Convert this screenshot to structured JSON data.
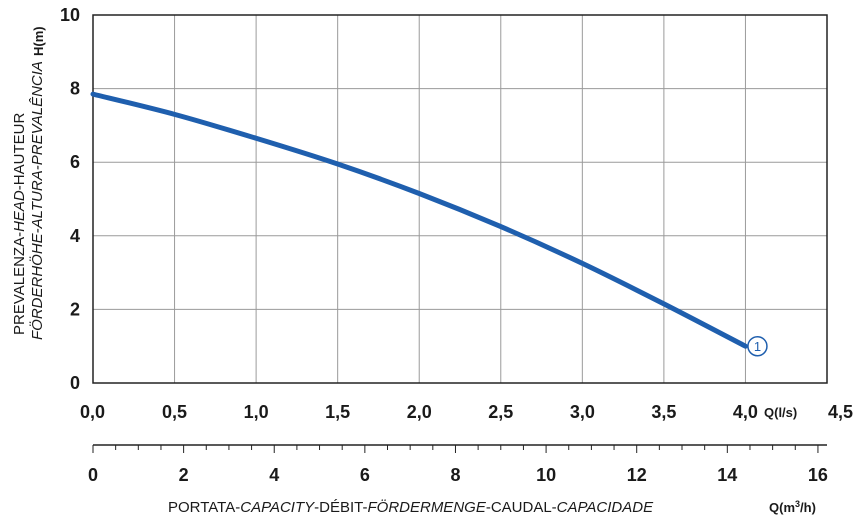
{
  "chart_data": {
    "type": "line",
    "ylabel_line1": [
      "PREVALENZA-",
      "HEAD",
      "-HAUTEUR"
    ],
    "ylabel_line2": "FÖRDERHÖHE-ALTURA-PREVALÊNCIA",
    "yunit": "H(m)",
    "xlabel_parts": [
      "PORTATA-",
      "CAPACITY",
      "-DÉBIT-",
      "FÖRDERMENGE",
      "-CAUDAL-",
      "CAPACIDADE"
    ],
    "x1unit": "Q(l/s)",
    "x2unit_prefix": "Q(m",
    "x2unit_sup": "3",
    "x2unit_suffix": "/h)",
    "ylim": [
      0,
      10
    ],
    "xlim": [
      0,
      4.5
    ],
    "x2lim": [
      0,
      16.2
    ],
    "yticks": [
      "0",
      "2",
      "4",
      "6",
      "8",
      "10"
    ],
    "x1ticks": [
      "0,0",
      "0,5",
      "1,0",
      "1,5",
      "2,0",
      "2,5",
      "3,0",
      "3,5",
      "4,0",
      "4,5"
    ],
    "x2ticks": [
      "0",
      "2",
      "4",
      "6",
      "8",
      "10",
      "12",
      "14",
      "16"
    ],
    "grid": true,
    "series": [
      {
        "marker": "1",
        "color": "#1f5fae",
        "x": [
          0.0,
          0.5,
          1.0,
          1.5,
          2.0,
          2.5,
          3.0,
          3.5,
          4.0
        ],
        "y": [
          7.85,
          7.3,
          6.65,
          5.95,
          5.15,
          4.25,
          3.25,
          2.15,
          1.0
        ]
      }
    ]
  }
}
